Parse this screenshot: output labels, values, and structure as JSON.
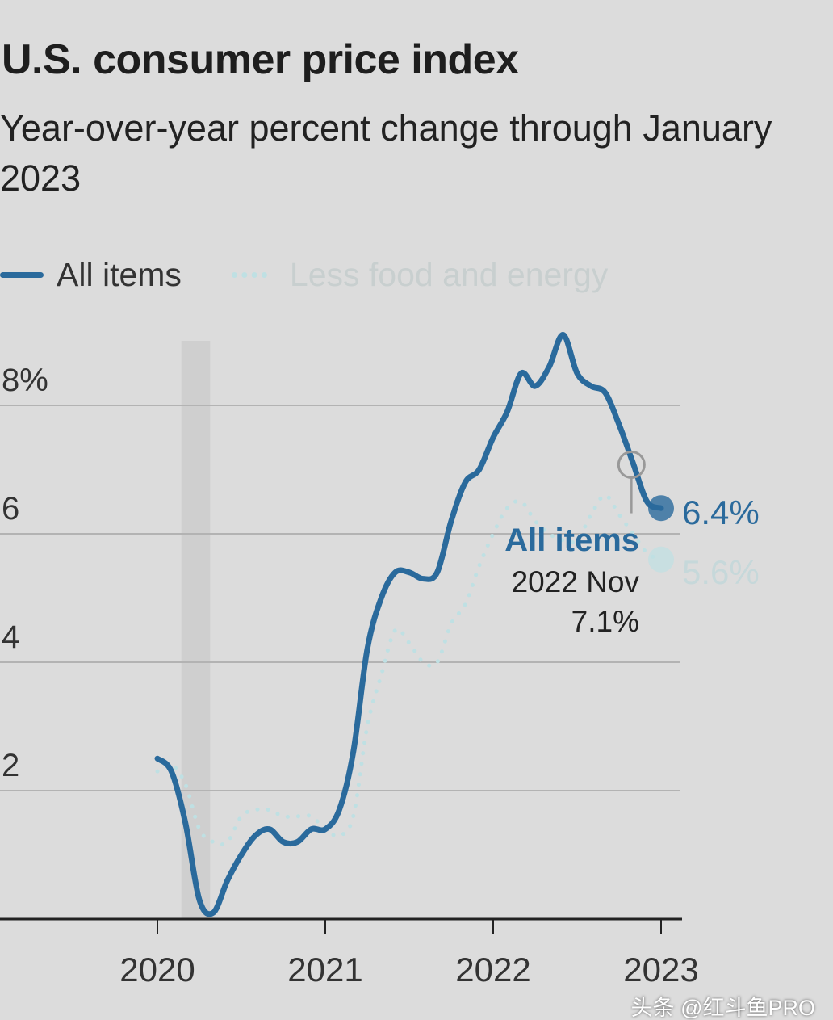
{
  "chart_data": {
    "type": "line",
    "title": "U.S. consumer price index",
    "subtitle": "Year-over-year percent change through January 2023",
    "xlabel": "",
    "ylabel": "",
    "ylim": [
      0,
      9.5
    ],
    "yticks": [
      {
        "v": 8,
        "label": "8%"
      },
      {
        "v": 6,
        "label": "6"
      },
      {
        "v": 4,
        "label": "4"
      },
      {
        "v": 2,
        "label": "2"
      }
    ],
    "xticks": [
      {
        "m": 0,
        "label": "2020"
      },
      {
        "m": 12,
        "label": "2021"
      },
      {
        "m": 24,
        "label": "2022"
      },
      {
        "m": 36,
        "label": "2023"
      }
    ],
    "x_start": "2020-01",
    "x_unit": "month",
    "shaded_period": {
      "start_month": 2,
      "end_month": 4,
      "meaning": "recession"
    },
    "series": [
      {
        "name": "All items",
        "style": "solid",
        "color": "#2a6a9c",
        "values": [
          2.5,
          2.3,
          1.5,
          0.3,
          0.1,
          0.6,
          1.0,
          1.3,
          1.4,
          1.2,
          1.2,
          1.4,
          1.4,
          1.7,
          2.6,
          4.2,
          5.0,
          5.4,
          5.4,
          5.3,
          5.4,
          6.2,
          6.8,
          7.0,
          7.5,
          7.9,
          8.5,
          8.3,
          8.6,
          9.1,
          8.5,
          8.3,
          8.2,
          7.7,
          7.1,
          6.5,
          6.4
        ],
        "end_label": "6.4%"
      },
      {
        "name": "Less food and energy",
        "style": "dotted",
        "color": "#bfe0e3",
        "values": [
          2.3,
          2.4,
          2.1,
          1.4,
          1.2,
          1.2,
          1.6,
          1.7,
          1.7,
          1.6,
          1.6,
          1.6,
          1.4,
          1.3,
          1.6,
          3.0,
          3.8,
          4.5,
          4.3,
          4.0,
          4.0,
          4.6,
          4.9,
          5.5,
          6.0,
          6.4,
          6.5,
          6.2,
          6.0,
          5.9,
          5.9,
          6.3,
          6.6,
          6.3,
          6.0,
          5.7,
          5.6
        ],
        "end_label": "5.6%"
      }
    ],
    "legend": {
      "placement": "top-left",
      "items": [
        "All items",
        "Less food and energy"
      ]
    },
    "tooltip": {
      "series": "All items",
      "date": "2022 Nov",
      "value": "7.1%",
      "month": 34,
      "v": 7.1
    }
  },
  "watermark": "头条 @红斗鱼PRO"
}
